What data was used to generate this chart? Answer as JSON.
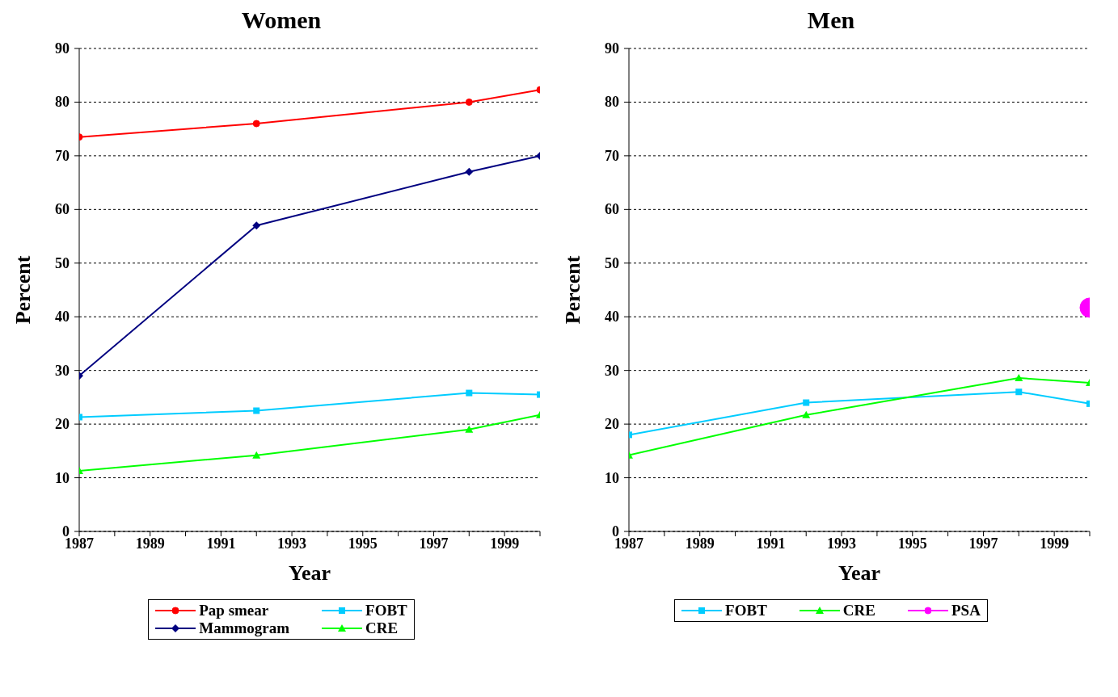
{
  "chart_data": [
    {
      "type": "line",
      "title": "Women",
      "xlabel": "Year",
      "ylabel": "Percent",
      "x": [
        1987,
        1992,
        1998,
        2000
      ],
      "xlim": [
        1987,
        2000
      ],
      "xticks": [
        1987,
        {
          "value": 1988,
          "label": null
        },
        1989,
        {
          "value": 1990,
          "label": null
        },
        1991,
        {
          "value": 1992,
          "label": null
        },
        1993,
        {
          "value": 1994,
          "label": null
        },
        1995,
        {
          "value": 1996,
          "label": null
        },
        1997,
        {
          "value": 1998,
          "label": null
        },
        1999,
        {
          "value": 2000,
          "label": null
        }
      ],
      "ylim": [
        0,
        90
      ],
      "yticks": [
        0,
        10,
        20,
        30,
        40,
        50,
        60,
        70,
        80,
        90
      ],
      "grid": "y",
      "legend": "bottom",
      "series": [
        {
          "name": "Pap smear",
          "color": "#ff0000",
          "marker": "circle",
          "values": [
            73.5,
            76,
            80,
            82.3
          ]
        },
        {
          "name": "Mammogram",
          "color": "#000080",
          "marker": "diamond",
          "values": [
            29,
            57,
            67,
            70
          ]
        },
        {
          "name": "FOBT",
          "color": "#00ccff",
          "marker": "square",
          "values": [
            21.3,
            22.5,
            25.8,
            25.5
          ]
        },
        {
          "name": "CRE",
          "color": "#00ff00",
          "marker": "triangle",
          "values": [
            11.3,
            14.2,
            19,
            21.7
          ]
        }
      ]
    },
    {
      "type": "line",
      "title": "Men",
      "xlabel": "Year",
      "ylabel": "Percent",
      "x": [
        1987,
        1992,
        1998,
        2000
      ],
      "xlim": [
        1987,
        2000
      ],
      "xticks": [
        1987,
        {
          "value": 1988,
          "label": null
        },
        1989,
        {
          "value": 1990,
          "label": null
        },
        1991,
        {
          "value": 1992,
          "label": null
        },
        1993,
        {
          "value": 1994,
          "label": null
        },
        1995,
        {
          "value": 1996,
          "label": null
        },
        1997,
        {
          "value": 1998,
          "label": null
        },
        1999,
        {
          "value": 2000,
          "label": null
        }
      ],
      "ylim": [
        0,
        90
      ],
      "yticks": [
        0,
        10,
        20,
        30,
        40,
        50,
        60,
        70,
        80,
        90
      ],
      "grid": "y",
      "legend": "bottom",
      "series": [
        {
          "name": "FOBT",
          "color": "#00ccff",
          "marker": "square",
          "values": [
            18,
            24,
            26,
            23.8
          ]
        },
        {
          "name": "CRE",
          "color": "#00ff00",
          "marker": "triangle",
          "values": [
            14.2,
            21.7,
            28.6,
            27.7
          ]
        },
        {
          "name": "PSA",
          "color": "#ff00ff",
          "marker": "circle",
          "values": [
            null,
            null,
            null,
            41.7
          ]
        }
      ]
    }
  ]
}
